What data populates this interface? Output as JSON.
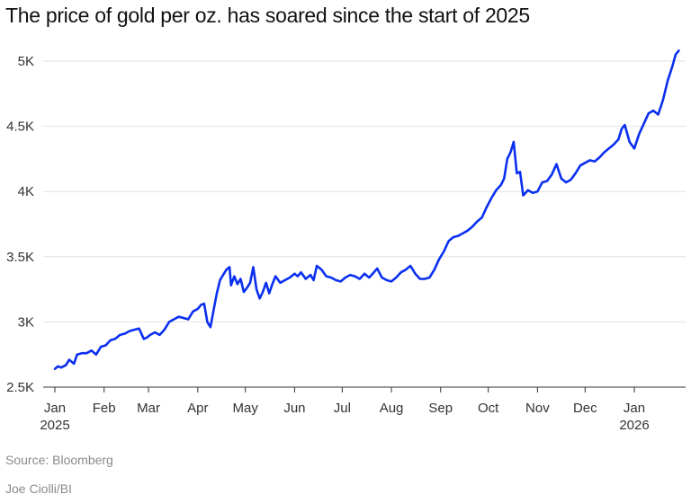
{
  "title": "The price of gold per oz. has soared since the start of 2025",
  "source": "Source: Bloomberg",
  "credit": "Joe Ciolli/BI",
  "colors": {
    "line": "#0a2ff0",
    "grid": "#e2e2e2",
    "axis": "#333333"
  },
  "chart_data": {
    "type": "line",
    "title": "The price of gold per oz. has soared since the start of 2025",
    "xlabel": "",
    "ylabel": "",
    "ylim": [
      2500,
      5100
    ],
    "yticks": [
      2500,
      3000,
      3500,
      4000,
      4500,
      5000
    ],
    "ytick_labels": [
      "2.5K",
      "3K",
      "3.5K",
      "4K",
      "4.5K",
      "5K"
    ],
    "xticks": [
      {
        "x": "2025-01-01",
        "label": "Jan",
        "sublabel": "2025"
      },
      {
        "x": "2025-02-01",
        "label": "Feb",
        "sublabel": ""
      },
      {
        "x": "2025-03-01",
        "label": "Mar",
        "sublabel": ""
      },
      {
        "x": "2025-04-01",
        "label": "Apr",
        "sublabel": ""
      },
      {
        "x": "2025-05-01",
        "label": "May",
        "sublabel": ""
      },
      {
        "x": "2025-06-01",
        "label": "Jun",
        "sublabel": ""
      },
      {
        "x": "2025-07-01",
        "label": "Jul",
        "sublabel": ""
      },
      {
        "x": "2025-08-01",
        "label": "Aug",
        "sublabel": ""
      },
      {
        "x": "2025-09-01",
        "label": "Sep",
        "sublabel": ""
      },
      {
        "x": "2025-10-01",
        "label": "Oct",
        "sublabel": ""
      },
      {
        "x": "2025-11-01",
        "label": "Nov",
        "sublabel": ""
      },
      {
        "x": "2025-12-01",
        "label": "Dec",
        "sublabel": ""
      },
      {
        "x": "2026-01-01",
        "label": "Jan",
        "sublabel": "2026"
      }
    ],
    "grid": true,
    "legend": "none",
    "series": [
      {
        "x": [
          "2025-01-01",
          "2025-01-03",
          "2025-01-05",
          "2025-01-08",
          "2025-01-10",
          "2025-01-13",
          "2025-01-15",
          "2025-01-18",
          "2025-01-21",
          "2025-01-24",
          "2025-01-27",
          "2025-01-30",
          "2025-02-02",
          "2025-02-05",
          "2025-02-08",
          "2025-02-11",
          "2025-02-14",
          "2025-02-17",
          "2025-02-20",
          "2025-02-23",
          "2025-02-26",
          "2025-02-28",
          "2025-03-02",
          "2025-03-05",
          "2025-03-08",
          "2025-03-11",
          "2025-03-14",
          "2025-03-17",
          "2025-03-20",
          "2025-03-23",
          "2025-03-26",
          "2025-03-29",
          "2025-04-01",
          "2025-04-03",
          "2025-04-05",
          "2025-04-07",
          "2025-04-09",
          "2025-04-11",
          "2025-04-13",
          "2025-04-15",
          "2025-04-17",
          "2025-04-19",
          "2025-04-21",
          "2025-04-22",
          "2025-04-24",
          "2025-04-26",
          "2025-04-28",
          "2025-04-30",
          "2025-05-02",
          "2025-05-04",
          "2025-05-06",
          "2025-05-08",
          "2025-05-10",
          "2025-05-12",
          "2025-05-14",
          "2025-05-16",
          "2025-05-18",
          "2025-05-20",
          "2025-05-23",
          "2025-05-26",
          "2025-05-29",
          "2025-06-01",
          "2025-06-03",
          "2025-06-05",
          "2025-06-08",
          "2025-06-11",
          "2025-06-13",
          "2025-06-15",
          "2025-06-18",
          "2025-06-21",
          "2025-06-24",
          "2025-06-27",
          "2025-06-30",
          "2025-07-03",
          "2025-07-06",
          "2025-07-09",
          "2025-07-12",
          "2025-07-15",
          "2025-07-18",
          "2025-07-21",
          "2025-07-23",
          "2025-07-26",
          "2025-07-29",
          "2025-08-01",
          "2025-08-04",
          "2025-08-07",
          "2025-08-10",
          "2025-08-13",
          "2025-08-16",
          "2025-08-19",
          "2025-08-22",
          "2025-08-25",
          "2025-08-28",
          "2025-08-31",
          "2025-09-03",
          "2025-09-06",
          "2025-09-09",
          "2025-09-12",
          "2025-09-15",
          "2025-09-18",
          "2025-09-21",
          "2025-09-24",
          "2025-09-27",
          "2025-09-30",
          "2025-10-03",
          "2025-10-06",
          "2025-10-09",
          "2025-10-11",
          "2025-10-13",
          "2025-10-15",
          "2025-10-17",
          "2025-10-19",
          "2025-10-21",
          "2025-10-23",
          "2025-10-26",
          "2025-10-29",
          "2025-11-01",
          "2025-11-04",
          "2025-11-07",
          "2025-11-10",
          "2025-11-13",
          "2025-11-16",
          "2025-11-19",
          "2025-11-22",
          "2025-11-25",
          "2025-11-28",
          "2025-12-01",
          "2025-12-04",
          "2025-12-07",
          "2025-12-10",
          "2025-12-13",
          "2025-12-16",
          "2025-12-19",
          "2025-12-22",
          "2025-12-24",
          "2025-12-26",
          "2025-12-29",
          "2026-01-01",
          "2026-01-04",
          "2026-01-07",
          "2026-01-10",
          "2026-01-13",
          "2026-01-16",
          "2026-01-19",
          "2026-01-22",
          "2026-01-25",
          "2026-01-27",
          "2026-01-29"
        ],
        "values": [
          2640,
          2660,
          2650,
          2670,
          2710,
          2680,
          2750,
          2760,
          2760,
          2780,
          2750,
          2810,
          2820,
          2860,
          2870,
          2900,
          2910,
          2930,
          2940,
          2950,
          2870,
          2880,
          2900,
          2920,
          2900,
          2940,
          3000,
          3020,
          3040,
          3030,
          3020,
          3080,
          3100,
          3130,
          3140,
          3000,
          2960,
          3090,
          3220,
          3320,
          3360,
          3400,
          3420,
          3280,
          3350,
          3290,
          3330,
          3230,
          3260,
          3300,
          3420,
          3250,
          3180,
          3230,
          3300,
          3220,
          3290,
          3350,
          3300,
          3320,
          3340,
          3370,
          3350,
          3380,
          3330,
          3360,
          3320,
          3430,
          3400,
          3350,
          3340,
          3320,
          3310,
          3340,
          3360,
          3350,
          3330,
          3370,
          3340,
          3380,
          3410,
          3340,
          3320,
          3310,
          3340,
          3380,
          3400,
          3430,
          3370,
          3330,
          3330,
          3340,
          3400,
          3480,
          3540,
          3620,
          3650,
          3660,
          3680,
          3700,
          3730,
          3770,
          3800,
          3880,
          3950,
          4010,
          4050,
          4100,
          4250,
          4300,
          4380,
          4140,
          4150,
          3970,
          4010,
          3990,
          4000,
          4070,
          4080,
          4130,
          4210,
          4100,
          4070,
          4090,
          4140,
          4200,
          4220,
          4240,
          4230,
          4260,
          4300,
          4330,
          4360,
          4400,
          4480,
          4510,
          4380,
          4330,
          4440,
          4520,
          4600,
          4620,
          4590,
          4700,
          4850,
          4960,
          5050,
          5080
        ]
      }
    ]
  }
}
